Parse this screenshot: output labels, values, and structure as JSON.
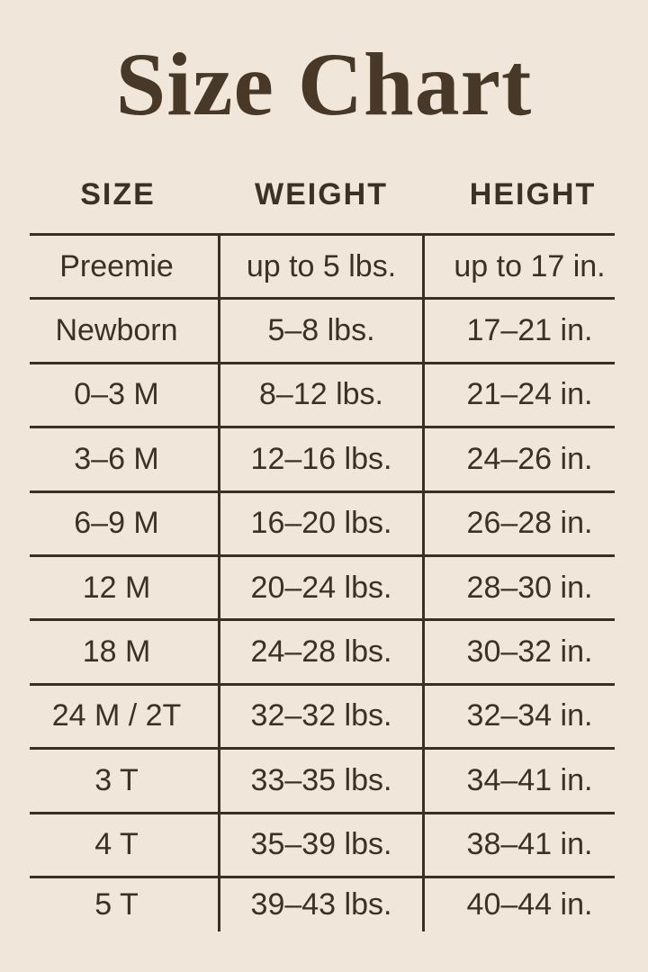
{
  "page": {
    "title": "Size Chart"
  },
  "colors": {
    "background": "#F0E7DA",
    "title_text": "#473827",
    "body_text": "#3C3125",
    "table_lines": "#3A3124"
  },
  "chart_data": {
    "type": "table",
    "title": "Size Chart",
    "columns": [
      "SIZE",
      "WEIGHT",
      "HEIGHT"
    ],
    "rows": [
      [
        "Preemie",
        "up to 5 lbs.",
        "up to 17 in."
      ],
      [
        "Newborn",
        "5–8 lbs.",
        "17–21 in."
      ],
      [
        "0–3 M",
        "8–12 lbs.",
        "21–24 in."
      ],
      [
        "3–6 M",
        "12–16 lbs.",
        "24–26 in."
      ],
      [
        "6–9 M",
        "16–20 lbs.",
        "26–28 in."
      ],
      [
        "12 M",
        "20–24 lbs.",
        "28–30 in."
      ],
      [
        "18 M",
        "24–28 lbs.",
        "30–32 in."
      ],
      [
        "24 M / 2T",
        "32–32 lbs.",
        "32–34 in."
      ],
      [
        "3 T",
        "33–35 lbs.",
        "34–41 in."
      ],
      [
        "4 T",
        "35–39 lbs.",
        "38–41 in."
      ],
      [
        "5 T",
        "39–43 lbs.",
        "40–44 in."
      ]
    ],
    "layout": {
      "grid": "horizontal-rules-only-between-rows",
      "column_dividers": true,
      "outer_border": false
    }
  }
}
